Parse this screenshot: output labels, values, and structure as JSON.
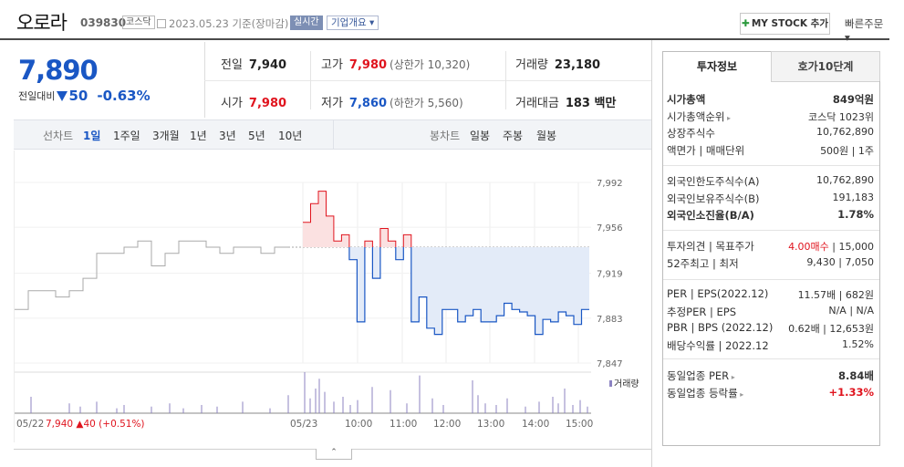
{
  "header": {
    "name": "오로라",
    "code": "039830",
    "market": "코스닥",
    "date": "2023.05.23",
    "basis": "기준(장마감)",
    "realtime_label": "실시간",
    "corp_info": "기업개요 ▾",
    "mystock": "MY STOCK 추가",
    "quick_order": "빠른주문 ▾"
  },
  "price": {
    "current": "7,890",
    "diff_label": "전일대비",
    "diff": "50",
    "pct": "-0.63%"
  },
  "stats": {
    "prev_label": "전일",
    "prev": "7,940",
    "high_label": "고가",
    "high": "7,980",
    "upper_limit": "(상한가 10,320)",
    "volume_label": "거래량",
    "volume": "23,180",
    "open_label": "시가",
    "open": "7,980",
    "low_label": "저가",
    "low": "7,860",
    "lower_limit": "(하한가 5,560)",
    "amount_label": "거래대금",
    "amount": "183 백만"
  },
  "period_tabs": {
    "label": "선차트",
    "items": [
      "1일",
      "1주일",
      "3개월",
      "1년",
      "3년",
      "5년",
      "10년"
    ],
    "active": "1일",
    "candle_label": "봉차트",
    "candle_items": [
      "일봉",
      "주봉",
      "월봉"
    ]
  },
  "chart_data": {
    "type": "line",
    "y_ticks": [
      "7,992",
      "7,956",
      "7,919",
      "7,883",
      "7,847"
    ],
    "x_ticks": [
      "05/23",
      "10:00",
      "11:00",
      "12:00",
      "13:00",
      "14:00",
      "15:00"
    ],
    "prev_day_label": "05/22",
    "prev_close_info": "7,940 ▲40 (+0.51%)",
    "volume_legend": "거래량",
    "baseline": 7940,
    "prev_day_series_values": [
      7890,
      7905,
      7905,
      7900,
      7905,
      7915,
      7935,
      7935,
      7940,
      7945,
      7925,
      7935,
      7945,
      7945,
      7940,
      7935,
      7940,
      7940,
      7935,
      7940,
      7940
    ],
    "today_series_values": [
      7960,
      7975,
      7985,
      7965,
      7945,
      7950,
      7930,
      7880,
      7945,
      7915,
      7955,
      7945,
      7930,
      7950,
      7880,
      7900,
      7875,
      7870,
      7890,
      7890,
      7880,
      7885,
      7890,
      7880,
      7880,
      7885,
      7895,
      7890,
      7888,
      7885,
      7870,
      7882,
      7880,
      7888,
      7885,
      7878,
      7890,
      7890
    ],
    "colors": {
      "up": "#e0141e",
      "down": "#1a57c4",
      "prev": "#aaaaaa",
      "fill_down": "#e3ebf8",
      "fill_up": "#fbe1e1",
      "volume": "#8c83c2"
    }
  },
  "info": {
    "tab_invest": "투자정보",
    "tab_hoga": "호가10단계",
    "rows1": [
      {
        "k": "시가총액",
        "v": "849억원",
        "bold": true
      },
      {
        "k": "시가총액순위",
        "v": "코스닥 1023위",
        "arrow": true
      },
      {
        "k": "상장주식수",
        "v": "10,762,890"
      },
      {
        "k": "액면가 | 매매단위",
        "v": "500원 | 1주"
      }
    ],
    "rows2": [
      {
        "k": "외국인한도주식수(A)",
        "v": "10,762,890"
      },
      {
        "k": "외국인보유주식수(B)",
        "v": "191,183"
      },
      {
        "k": "외국인소진율(B/A)",
        "v": "1.78%",
        "bold": true
      }
    ],
    "rows3": [
      {
        "k": "투자의견 | 목표주가",
        "v_red": "4.00매수",
        "v": "15,000"
      },
      {
        "k": "52주최고 | 최저",
        "v": "9,430 | 7,050"
      }
    ],
    "rows4": [
      {
        "k": "PER | EPS(2022.12)",
        "v": "11.57배 | 682원"
      },
      {
        "k": "추정PER | EPS",
        "v": "N/A | N/A"
      },
      {
        "k": "PBR | BPS (2022.12)",
        "v": "0.62배 | 12,653원"
      },
      {
        "k": "배당수익률 | 2022.12",
        "v": "1.52%"
      }
    ],
    "rows5": [
      {
        "k": "동일업종 PER",
        "v": "8.84배"
      },
      {
        "k": "동일업종 등락률",
        "v": "+1.33%"
      }
    ]
  }
}
